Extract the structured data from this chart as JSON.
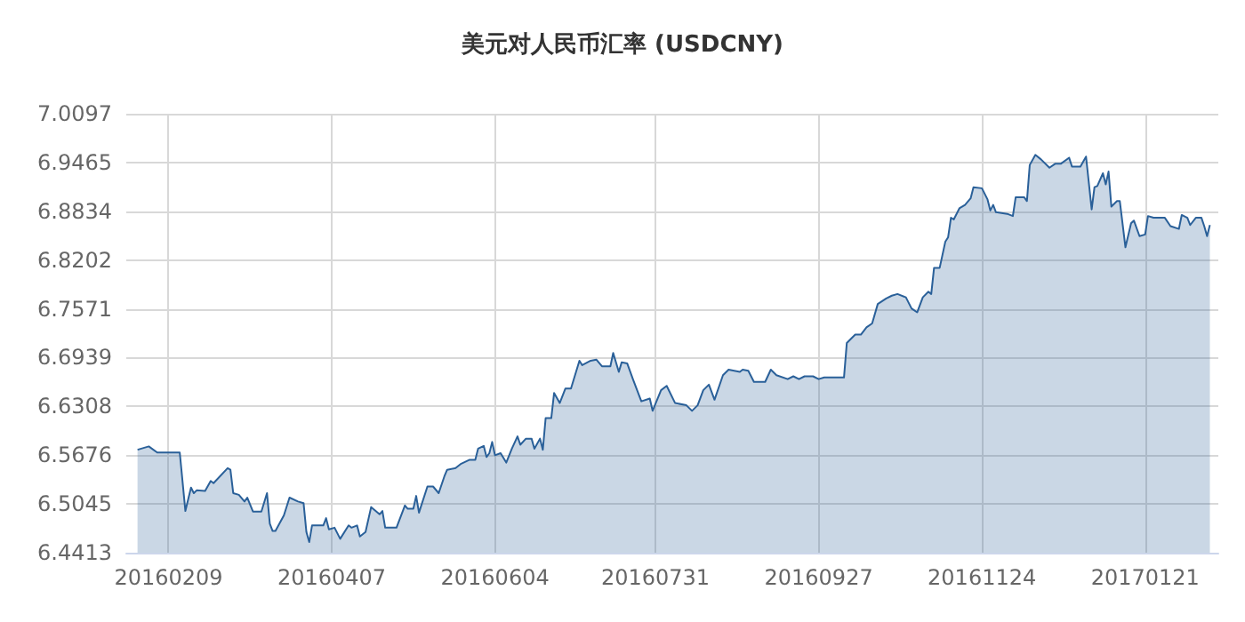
{
  "chart_data": {
    "type": "area",
    "title": "美元对人民币汇率 (USDCNY)",
    "x": [
      "2016-01-29",
      "2016-02-02",
      "2016-02-05",
      "2016-02-13",
      "2016-02-15",
      "2016-02-17",
      "2016-02-18",
      "2016-02-19",
      "2016-02-22",
      "2016-02-24",
      "2016-02-25",
      "2016-03-01",
      "2016-03-02",
      "2016-03-03",
      "2016-03-05",
      "2016-03-07",
      "2016-03-08",
      "2016-03-10",
      "2016-03-13",
      "2016-03-15",
      "2016-03-16",
      "2016-03-17",
      "2016-03-18",
      "2016-03-21",
      "2016-03-23",
      "2016-03-26",
      "2016-03-28",
      "2016-03-29",
      "2016-03-30",
      "2016-03-31",
      "2016-04-04",
      "2016-04-05",
      "2016-04-06",
      "2016-04-08",
      "2016-04-10",
      "2016-04-13",
      "2016-04-14",
      "2016-04-16",
      "2016-04-17",
      "2016-04-19",
      "2016-04-21",
      "2016-04-24",
      "2016-04-25",
      "2016-04-26",
      "2016-04-30",
      "2016-05-03",
      "2016-05-04",
      "2016-05-06",
      "2016-05-07",
      "2016-05-08",
      "2016-05-11",
      "2016-05-13",
      "2016-05-15",
      "2016-05-17",
      "2016-05-18",
      "2016-05-21",
      "2016-05-23",
      "2016-05-26",
      "2016-05-28",
      "2016-05-29",
      "2016-05-31",
      "2016-06-01",
      "2016-06-02",
      "2016-06-03",
      "2016-06-04",
      "2016-06-06",
      "2016-06-08",
      "2016-06-10",
      "2016-06-12",
      "2016-06-13",
      "2016-06-15",
      "2016-06-17",
      "2016-06-18",
      "2016-06-20",
      "2016-06-21",
      "2016-06-22",
      "2016-06-24",
      "2016-06-25",
      "2016-06-27",
      "2016-06-29",
      "2016-07-01",
      "2016-07-04",
      "2016-07-05",
      "2016-07-08",
      "2016-07-10",
      "2016-07-12",
      "2016-07-15",
      "2016-07-16",
      "2016-07-18",
      "2016-07-19",
      "2016-07-21",
      "2016-07-23",
      "2016-07-26",
      "2016-07-29",
      "2016-07-30",
      "2016-08-02",
      "2016-08-04",
      "2016-08-07",
      "2016-08-11",
      "2016-08-13",
      "2016-08-15",
      "2016-08-17",
      "2016-08-19",
      "2016-08-21",
      "2016-08-24",
      "2016-08-26",
      "2016-08-30",
      "2016-08-31",
      "2016-09-02",
      "2016-09-04",
      "2016-09-08",
      "2016-09-10",
      "2016-09-12",
      "2016-09-16",
      "2016-09-18",
      "2016-09-20",
      "2016-09-22",
      "2016-09-25",
      "2016-09-27",
      "2016-09-29",
      "2016-10-06",
      "2016-10-07",
      "2016-10-10",
      "2016-10-12",
      "2016-10-14",
      "2016-10-16",
      "2016-10-18",
      "2016-10-21",
      "2016-10-23",
      "2016-10-25",
      "2016-10-28",
      "2016-10-30",
      "2016-11-01",
      "2016-11-03",
      "2016-11-05",
      "2016-11-06",
      "2016-11-07",
      "2016-11-09",
      "2016-11-11",
      "2016-11-12",
      "2016-11-13",
      "2016-11-14",
      "2016-11-16",
      "2016-11-18",
      "2016-11-20",
      "2016-11-21",
      "2016-11-24",
      "2016-11-26",
      "2016-11-27",
      "2016-11-28",
      "2016-11-29",
      "2016-12-03",
      "2016-12-05",
      "2016-12-06",
      "2016-12-09",
      "2016-12-10",
      "2016-12-11",
      "2016-12-13",
      "2016-12-15",
      "2016-12-18",
      "2016-12-20",
      "2016-12-22",
      "2016-12-25",
      "2016-12-26",
      "2016-12-29",
      "2016-12-31",
      "2017-01-02",
      "2017-01-03",
      "2017-01-04",
      "2017-01-06",
      "2017-01-07",
      "2017-01-08",
      "2017-01-09",
      "2017-01-11",
      "2017-01-12",
      "2017-01-14",
      "2017-01-16",
      "2017-01-17",
      "2017-01-19",
      "2017-01-21",
      "2017-01-22",
      "2017-01-24",
      "2017-01-28",
      "2017-01-30",
      "2017-02-02",
      "2017-02-03",
      "2017-02-05",
      "2017-02-06",
      "2017-02-08",
      "2017-02-10",
      "2017-02-11",
      "2017-02-12",
      "2017-02-13"
    ],
    "series": [
      {
        "color": "#2a6099",
        "values": [
          6.5746,
          6.5789,
          6.571,
          6.571,
          6.4953,
          6.5256,
          6.5184,
          6.522,
          6.5213,
          6.5342,
          6.5314,
          6.5508,
          6.5487,
          6.5184,
          6.5162,
          6.5076,
          6.5126,
          6.4946,
          6.4946,
          6.5184,
          6.4788,
          6.4694,
          6.4694,
          6.4896,
          6.5126,
          6.5076,
          6.5054,
          6.468,
          6.455,
          6.4766,
          6.4766,
          6.486,
          6.4716,
          6.4737,
          6.4593,
          6.4766,
          6.4737,
          6.4766,
          6.4622,
          6.468,
          6.5004,
          6.491,
          6.4953,
          6.4737,
          6.4737,
          6.5025,
          6.4982,
          6.4982,
          6.5148,
          6.4932,
          6.527,
          6.527,
          6.5184,
          6.54,
          6.5487,
          6.5508,
          6.5566,
          6.5616,
          6.5616,
          6.576,
          6.5796,
          6.5652,
          6.5702,
          6.5847,
          6.5674,
          6.5702,
          6.558,
          6.576,
          6.5919,
          6.5811,
          6.589,
          6.589,
          6.576,
          6.589,
          6.5746,
          6.6156,
          6.6156,
          6.6481,
          6.6351,
          6.6538,
          6.6538,
          6.6899,
          6.6841,
          6.6899,
          6.6913,
          6.6827,
          6.6827,
          6.7,
          6.6755,
          6.6877,
          6.6863,
          6.6661,
          6.6373,
          6.6409,
          6.625,
          6.6517,
          6.6574,
          6.6351,
          6.6322,
          6.625,
          6.6322,
          6.6517,
          6.6589,
          6.6394,
          6.6711,
          6.6783,
          6.6755,
          6.6783,
          6.6769,
          6.6625,
          6.6625,
          6.6783,
          6.6711,
          6.6661,
          6.6697,
          6.6661,
          6.6697,
          6.6697,
          6.6661,
          6.6682,
          6.6682,
          6.7129,
          6.7237,
          6.7237,
          6.7331,
          6.7381,
          6.7633,
          6.7705,
          6.7741,
          6.7763,
          6.772,
          6.7576,
          6.7525,
          6.772,
          6.7792,
          6.7763,
          6.8102,
          6.8102,
          6.844,
          6.8498,
          6.875,
          6.8728,
          6.8872,
          6.8916,
          6.9002,
          6.9146,
          6.9132,
          6.8988,
          6.8844,
          6.8916,
          6.8822,
          6.8801,
          6.8772,
          6.9016,
          6.9016,
          6.8966,
          6.9434,
          6.9564,
          6.9506,
          6.9398,
          6.9449,
          6.9449,
          6.9528,
          6.9413,
          6.9413,
          6.9542,
          6.8858,
          6.9146,
          6.916,
          6.9326,
          6.9182,
          6.9348,
          6.8894,
          6.8966,
          6.8966,
          6.8368,
          6.8678,
          6.8714,
          6.8512,
          6.8534,
          6.8772,
          6.875,
          6.875,
          6.8642,
          6.8606,
          6.8786,
          6.875,
          6.8656,
          6.875,
          6.875,
          6.8642,
          6.8512,
          6.8656
        ]
      }
    ],
    "xlim": [
      "2016-01-25",
      "2017-02-16"
    ],
    "xticks": [
      {
        "value": "2016-02-09",
        "label": "20160209"
      },
      {
        "value": "2016-04-07",
        "label": "20160407"
      },
      {
        "value": "2016-06-04",
        "label": "20160604"
      },
      {
        "value": "2016-07-31",
        "label": "20160731"
      },
      {
        "value": "2016-09-27",
        "label": "20160927"
      },
      {
        "value": "2016-11-24",
        "label": "20161124"
      },
      {
        "value": "2017-01-21",
        "label": "20170121"
      }
    ],
    "ylim": [
      6.4413,
      7.0097
    ],
    "yticks": [
      6.4413,
      6.5045,
      6.5676,
      6.6308,
      6.6939,
      6.7571,
      6.8202,
      6.8834,
      6.9465,
      7.0097
    ],
    "grid": true
  }
}
